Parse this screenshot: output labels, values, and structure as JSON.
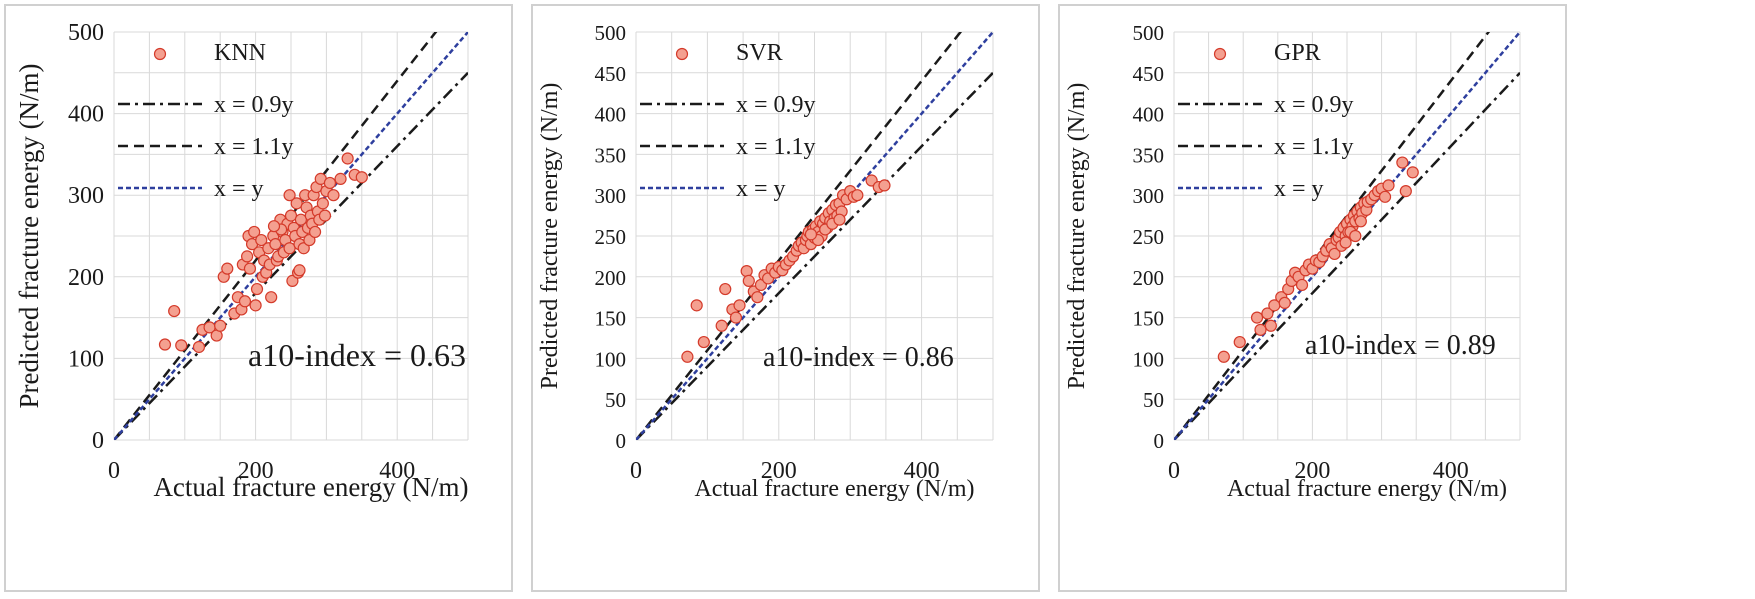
{
  "colors": {
    "marker_fill": "#f4a090",
    "marker_edge": "#d43a2a",
    "line_09": "#1a1a1a",
    "line_11": "#1a1a1a",
    "line_eq": "#2e3f9e",
    "grid": "#d9d9d9"
  },
  "chart_data": [
    {
      "type": "scatter",
      "name": "KNN",
      "xlabel": "Actual fracture energy (N/m)",
      "ylabel": "Predicted fracture energy (N/m)",
      "xlim": [
        0,
        500
      ],
      "ylim": [
        0,
        500
      ],
      "xticks": [
        "0",
        "200",
        "400"
      ],
      "yticks": [
        "0",
        "100",
        "200",
        "300",
        "400",
        "500"
      ],
      "legend": [
        "KNN",
        "x = 0.9y",
        "x = 1.1y",
        "x = y"
      ],
      "annotation": "a10-index = 0.63",
      "points": [
        [
          72,
          117
        ],
        [
          85,
          158
        ],
        [
          95,
          116
        ],
        [
          120,
          114
        ],
        [
          125,
          135
        ],
        [
          135,
          138
        ],
        [
          145,
          128
        ],
        [
          150,
          140
        ],
        [
          155,
          200
        ],
        [
          160,
          210
        ],
        [
          170,
          155
        ],
        [
          175,
          175
        ],
        [
          180,
          160
        ],
        [
          182,
          215
        ],
        [
          185,
          170
        ],
        [
          188,
          225
        ],
        [
          190,
          250
        ],
        [
          192,
          210
        ],
        [
          195,
          240
        ],
        [
          198,
          255
        ],
        [
          200,
          165
        ],
        [
          202,
          185
        ],
        [
          205,
          230
        ],
        [
          208,
          245
        ],
        [
          210,
          200
        ],
        [
          212,
          220
        ],
        [
          215,
          205
        ],
        [
          218,
          235
        ],
        [
          220,
          215
        ],
        [
          222,
          175
        ],
        [
          225,
          250
        ],
        [
          228,
          240
        ],
        [
          230,
          220
        ],
        [
          232,
          225
        ],
        [
          235,
          270
        ],
        [
          238,
          255
        ],
        [
          240,
          230
        ],
        [
          242,
          245
        ],
        [
          245,
          265
        ],
        [
          248,
          235
        ],
        [
          250,
          275
        ],
        [
          252,
          195
        ],
        [
          254,
          260
        ],
        [
          256,
          250
        ],
        [
          258,
          290
        ],
        [
          260,
          205
        ],
        [
          262,
          240
        ],
        [
          264,
          270
        ],
        [
          266,
          255
        ],
        [
          268,
          235
        ],
        [
          270,
          300
        ],
        [
          272,
          285
        ],
        [
          274,
          260
        ],
        [
          276,
          245
        ],
        [
          278,
          275
        ],
        [
          280,
          265
        ],
        [
          282,
          300
        ],
        [
          284,
          255
        ],
        [
          286,
          310
        ],
        [
          288,
          280
        ],
        [
          290,
          270
        ],
        [
          292,
          320
        ],
        [
          295,
          290
        ],
        [
          298,
          275
        ],
        [
          300,
          305
        ],
        [
          305,
          315
        ],
        [
          310,
          300
        ],
        [
          320,
          320
        ],
        [
          330,
          345
        ],
        [
          340,
          325
        ],
        [
          350,
          322
        ],
        [
          262,
          208
        ],
        [
          248,
          300
        ],
        [
          236,
          258
        ],
        [
          226,
          262
        ]
      ]
    },
    {
      "type": "scatter",
      "name": "SVR",
      "xlabel": "Actual fracture energy (N/m)",
      "ylabel": "Predicted fracture energy (N/m)",
      "xlim": [
        0,
        500
      ],
      "ylim": [
        0,
        500
      ],
      "xticks": [
        "0",
        "200",
        "400"
      ],
      "yticks": [
        "0",
        "50",
        "100",
        "150",
        "200",
        "250",
        "300",
        "350",
        "400",
        "450",
        "500"
      ],
      "legend": [
        "SVR",
        "x = 0.9y",
        "x = 1.1y",
        "x = y"
      ],
      "annotation": "a10-index = 0.86",
      "points": [
        [
          72,
          102
        ],
        [
          85,
          165
        ],
        [
          95,
          120
        ],
        [
          120,
          140
        ],
        [
          125,
          185
        ],
        [
          135,
          160
        ],
        [
          140,
          150
        ],
        [
          145,
          165
        ],
        [
          155,
          207
        ],
        [
          158,
          195
        ],
        [
          165,
          182
        ],
        [
          170,
          175
        ],
        [
          175,
          190
        ],
        [
          180,
          202
        ],
        [
          185,
          198
        ],
        [
          190,
          210
        ],
        [
          195,
          205
        ],
        [
          200,
          212
        ],
        [
          205,
          208
        ],
        [
          210,
          215
        ],
        [
          215,
          220
        ],
        [
          220,
          225
        ],
        [
          225,
          232
        ],
        [
          228,
          238
        ],
        [
          232,
          242
        ],
        [
          235,
          235
        ],
        [
          238,
          245
        ],
        [
          240,
          250
        ],
        [
          242,
          255
        ],
        [
          245,
          240
        ],
        [
          248,
          258
        ],
        [
          250,
          248
        ],
        [
          252,
          262
        ],
        [
          255,
          255
        ],
        [
          258,
          268
        ],
        [
          260,
          250
        ],
        [
          262,
          265
        ],
        [
          265,
          272
        ],
        [
          268,
          260
        ],
        [
          270,
          278
        ],
        [
          272,
          268
        ],
        [
          275,
          282
        ],
        [
          278,
          272
        ],
        [
          280,
          288
        ],
        [
          282,
          275
        ],
        [
          285,
          290
        ],
        [
          288,
          280
        ],
        [
          290,
          300
        ],
        [
          295,
          295
        ],
        [
          300,
          305
        ],
        [
          305,
          298
        ],
        [
          310,
          300
        ],
        [
          330,
          318
        ],
        [
          340,
          310
        ],
        [
          348,
          312
        ],
        [
          265,
          258
        ],
        [
          255,
          245
        ],
        [
          245,
          252
        ],
        [
          275,
          265
        ],
        [
          285,
          270
        ]
      ]
    },
    {
      "type": "scatter",
      "name": "GPR",
      "xlabel": "Actual fracture energy (N/m)",
      "ylabel": "Predicted fracture energy (N/m)",
      "xlim": [
        0,
        500
      ],
      "ylim": [
        0,
        500
      ],
      "xticks": [
        "0",
        "200",
        "400"
      ],
      "yticks": [
        "0",
        "50",
        "100",
        "150",
        "200",
        "250",
        "300",
        "350",
        "400",
        "450",
        "500"
      ],
      "legend": [
        "GPR",
        "x = 0.9y",
        "x = 1.1y",
        "x = y"
      ],
      "annotation": "a10-index = 0.89",
      "points": [
        [
          72,
          102
        ],
        [
          95,
          120
        ],
        [
          120,
          150
        ],
        [
          125,
          135
        ],
        [
          135,
          155
        ],
        [
          140,
          140
        ],
        [
          145,
          165
        ],
        [
          155,
          175
        ],
        [
          160,
          168
        ],
        [
          165,
          185
        ],
        [
          170,
          195
        ],
        [
          175,
          205
        ],
        [
          180,
          200
        ],
        [
          185,
          190
        ],
        [
          190,
          208
        ],
        [
          195,
          215
        ],
        [
          200,
          210
        ],
        [
          205,
          220
        ],
        [
          210,
          218
        ],
        [
          215,
          225
        ],
        [
          220,
          232
        ],
        [
          225,
          240
        ],
        [
          228,
          235
        ],
        [
          232,
          228
        ],
        [
          235,
          245
        ],
        [
          238,
          248
        ],
        [
          240,
          255
        ],
        [
          242,
          238
        ],
        [
          245,
          260
        ],
        [
          248,
          250
        ],
        [
          250,
          265
        ],
        [
          252,
          255
        ],
        [
          255,
          270
        ],
        [
          258,
          262
        ],
        [
          260,
          275
        ],
        [
          262,
          268
        ],
        [
          265,
          280
        ],
        [
          268,
          272
        ],
        [
          270,
          285
        ],
        [
          272,
          278
        ],
        [
          275,
          290
        ],
        [
          278,
          282
        ],
        [
          280,
          292
        ],
        [
          285,
          295
        ],
        [
          290,
          300
        ],
        [
          295,
          305
        ],
        [
          300,
          308
        ],
        [
          305,
          298
        ],
        [
          310,
          312
        ],
        [
          330,
          340
        ],
        [
          335,
          305
        ],
        [
          345,
          328
        ],
        [
          255,
          255
        ],
        [
          262,
          250
        ],
        [
          248,
          242
        ],
        [
          270,
          268
        ]
      ]
    }
  ]
}
